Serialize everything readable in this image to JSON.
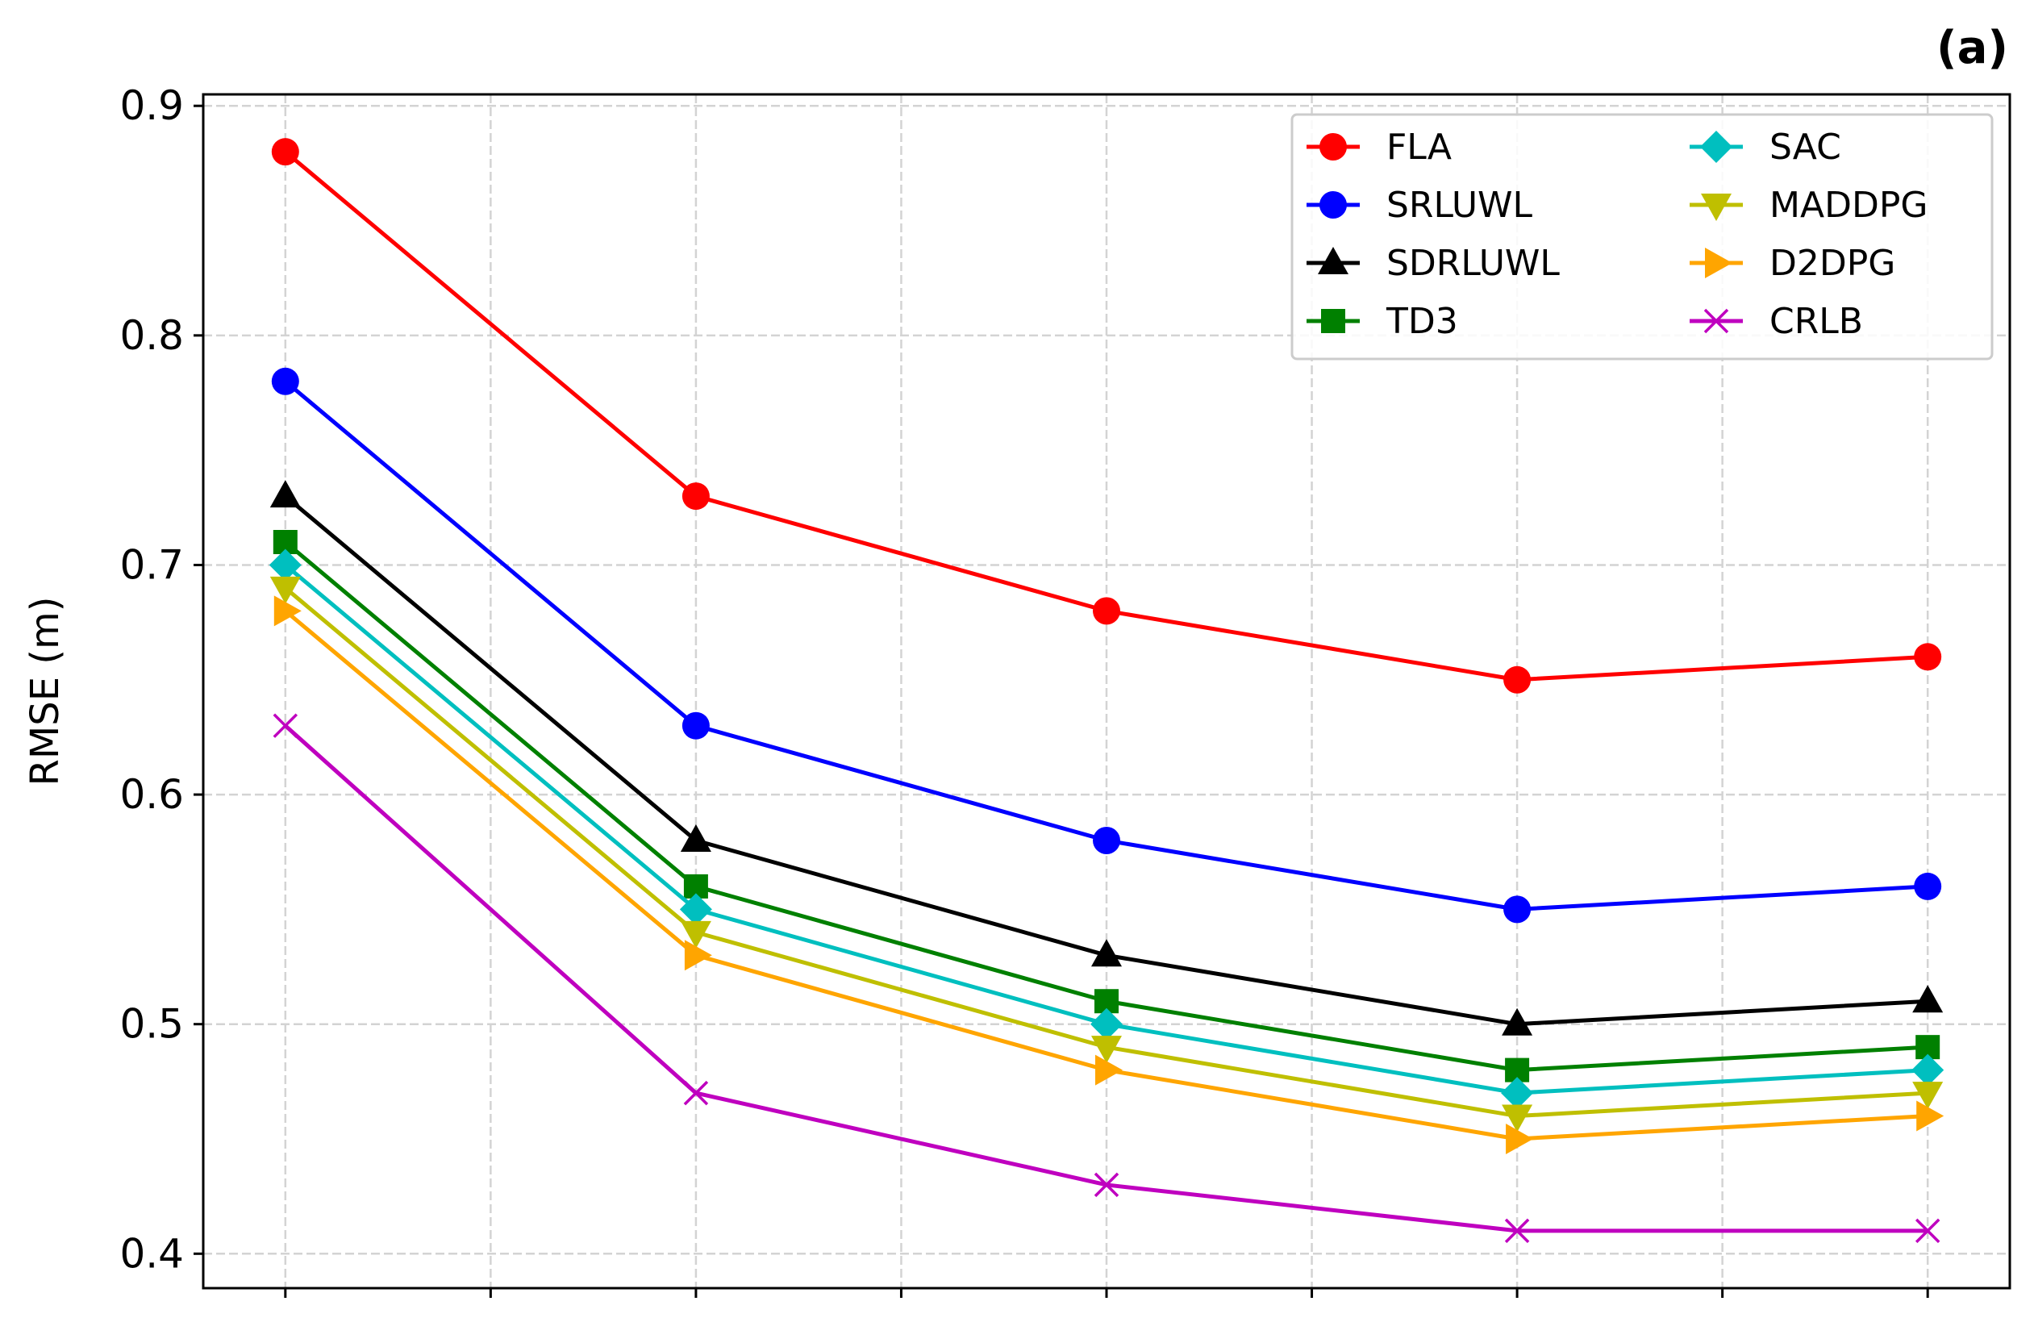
{
  "chart_data": {
    "type": "line",
    "panel_label": "(a)",
    "title": "",
    "xlabel": "",
    "ylabel": "RMSE (m)",
    "ylim": [
      0.385,
      0.905
    ],
    "yticks": [
      0.4,
      0.5,
      0.6,
      0.7,
      0.8,
      0.9
    ],
    "ytick_labels": [
      "0.4",
      "0.5",
      "0.6",
      "0.7",
      "0.8",
      "0.9"
    ],
    "x": [
      1,
      2,
      3,
      4,
      5
    ],
    "xlim": [
      0.8,
      5.2
    ],
    "x_minor_ticks": [
      1.5,
      2.5,
      3.5,
      4.5
    ],
    "grid": true,
    "legend_position": "top-right",
    "legend_columns": 2,
    "series": [
      {
        "name": "FLA",
        "color": "#ff0000",
        "marker": "circle",
        "values": [
          0.88,
          0.73,
          0.68,
          0.65,
          0.66
        ]
      },
      {
        "name": "SRLUWL",
        "color": "#0000ff",
        "marker": "circle",
        "values": [
          0.78,
          0.63,
          0.58,
          0.55,
          0.56
        ]
      },
      {
        "name": "SDRLUWL",
        "color": "#000000",
        "marker": "triangle-up",
        "values": [
          0.73,
          0.58,
          0.53,
          0.5,
          0.51
        ]
      },
      {
        "name": "TD3",
        "color": "#008000",
        "marker": "square",
        "values": [
          0.71,
          0.56,
          0.51,
          0.48,
          0.49
        ]
      },
      {
        "name": "SAC",
        "color": "#00bfbf",
        "marker": "diamond",
        "values": [
          0.7,
          0.55,
          0.5,
          0.47,
          0.48
        ]
      },
      {
        "name": "MADDPG",
        "color": "#bfbf00",
        "marker": "triangle-down",
        "values": [
          0.69,
          0.54,
          0.49,
          0.46,
          0.47
        ]
      },
      {
        "name": "D2DPG",
        "color": "#ffa500",
        "marker": "triangle-right",
        "values": [
          0.68,
          0.53,
          0.48,
          0.45,
          0.46
        ]
      },
      {
        "name": "CRLB",
        "color": "#bf00bf",
        "marker": "x",
        "values": [
          0.63,
          0.47,
          0.43,
          0.41,
          0.41
        ]
      }
    ]
  }
}
